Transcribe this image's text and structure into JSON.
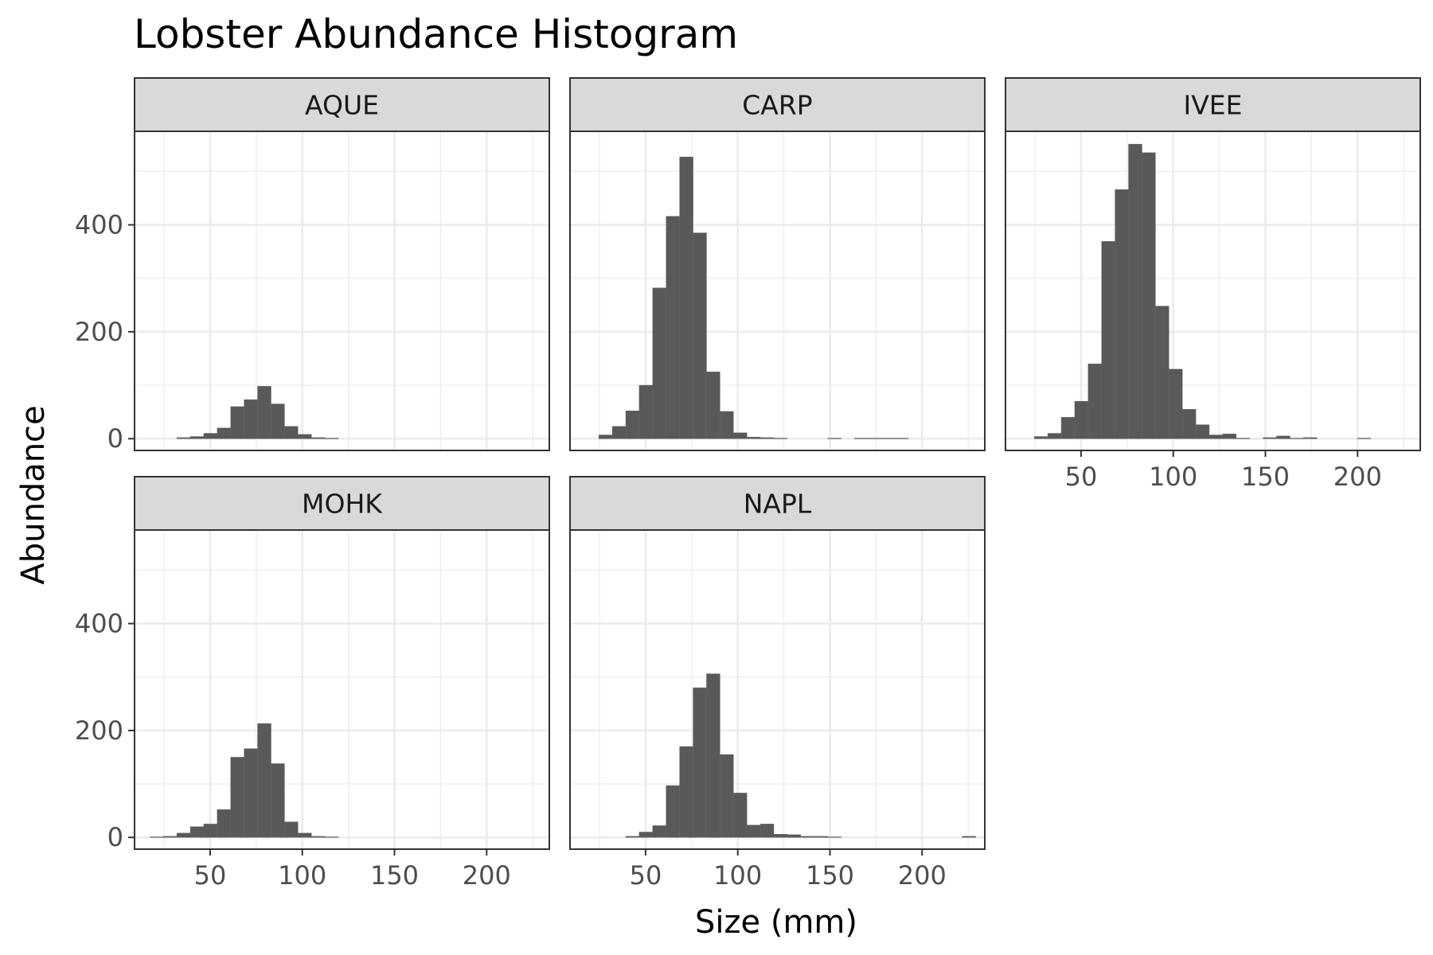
{
  "chart_data": {
    "type": "bar",
    "title": "Lobster Abundance Histogram",
    "xlabel": "Size (mm)",
    "ylabel": "Abundance",
    "xlim": [
      9,
      234
    ],
    "ylim": [
      -22,
      575
    ],
    "x_ticks": [
      50,
      100,
      150,
      200
    ],
    "y_ticks": [
      0,
      200,
      400
    ],
    "bin_width": 7.3,
    "grid": true,
    "bar_color": "#595959",
    "panel_border_color": "#333333",
    "strip_fill": "#d9d9d9",
    "grid_color": "#ebebeb",
    "facets": [
      {
        "label": "AQUE",
        "bins": [
          [
            35.6,
            2
          ],
          [
            42.9,
            4
          ],
          [
            50.2,
            10
          ],
          [
            57.5,
            20
          ],
          [
            64.8,
            60
          ],
          [
            72.1,
            73
          ],
          [
            79.4,
            98
          ],
          [
            86.7,
            65
          ],
          [
            94.0,
            23
          ],
          [
            101.3,
            8
          ],
          [
            108.6,
            2
          ],
          [
            115.9,
            1
          ]
        ]
      },
      {
        "label": "CARP",
        "bins": [
          [
            28.3,
            7
          ],
          [
            35.6,
            23
          ],
          [
            42.9,
            52
          ],
          [
            50.2,
            100
          ],
          [
            57.5,
            282
          ],
          [
            64.8,
            416
          ],
          [
            72.1,
            527
          ],
          [
            79.4,
            385
          ],
          [
            86.7,
            125
          ],
          [
            94.0,
            51
          ],
          [
            101.3,
            11
          ],
          [
            108.6,
            3
          ],
          [
            115.9,
            2
          ],
          [
            123.2,
            1
          ],
          [
            152.4,
            1
          ],
          [
            167.0,
            1
          ],
          [
            174.3,
            1
          ],
          [
            181.6,
            1
          ],
          [
            188.9,
            1
          ]
        ]
      },
      {
        "label": "IVEE",
        "bins": [
          [
            28.3,
            4
          ],
          [
            35.6,
            10
          ],
          [
            42.9,
            40
          ],
          [
            50.2,
            70
          ],
          [
            57.5,
            140
          ],
          [
            64.8,
            369
          ],
          [
            72.1,
            466
          ],
          [
            79.4,
            551
          ],
          [
            86.7,
            535
          ],
          [
            94.0,
            248
          ],
          [
            101.3,
            130
          ],
          [
            108.6,
            55
          ],
          [
            115.9,
            26
          ],
          [
            123.2,
            7
          ],
          [
            130.5,
            9
          ],
          [
            137.8,
            1
          ],
          [
            152.4,
            2
          ],
          [
            159.7,
            5
          ],
          [
            167.0,
            1
          ],
          [
            174.3,
            2
          ],
          [
            203.5,
            1
          ]
        ]
      },
      {
        "label": "MOHK",
        "bins": [
          [
            21.0,
            1
          ],
          [
            28.3,
            2
          ],
          [
            35.6,
            8
          ],
          [
            42.9,
            20
          ],
          [
            50.2,
            25
          ],
          [
            57.5,
            52
          ],
          [
            64.8,
            150
          ],
          [
            72.1,
            166
          ],
          [
            79.4,
            213
          ],
          [
            86.7,
            138
          ],
          [
            94.0,
            29
          ],
          [
            101.3,
            8
          ],
          [
            108.6,
            2
          ],
          [
            115.9,
            1
          ]
        ]
      },
      {
        "label": "NAPL",
        "bins": [
          [
            42.9,
            2
          ],
          [
            50.2,
            10
          ],
          [
            57.5,
            22
          ],
          [
            64.8,
            97
          ],
          [
            72.1,
            170
          ],
          [
            79.4,
            280
          ],
          [
            86.7,
            306
          ],
          [
            94.0,
            155
          ],
          [
            101.3,
            83
          ],
          [
            108.6,
            23
          ],
          [
            115.9,
            25
          ],
          [
            123.2,
            6
          ],
          [
            130.5,
            5
          ],
          [
            137.8,
            2
          ],
          [
            145.1,
            2
          ],
          [
            152.4,
            1
          ],
          [
            225.4,
            2
          ]
        ]
      }
    ]
  }
}
